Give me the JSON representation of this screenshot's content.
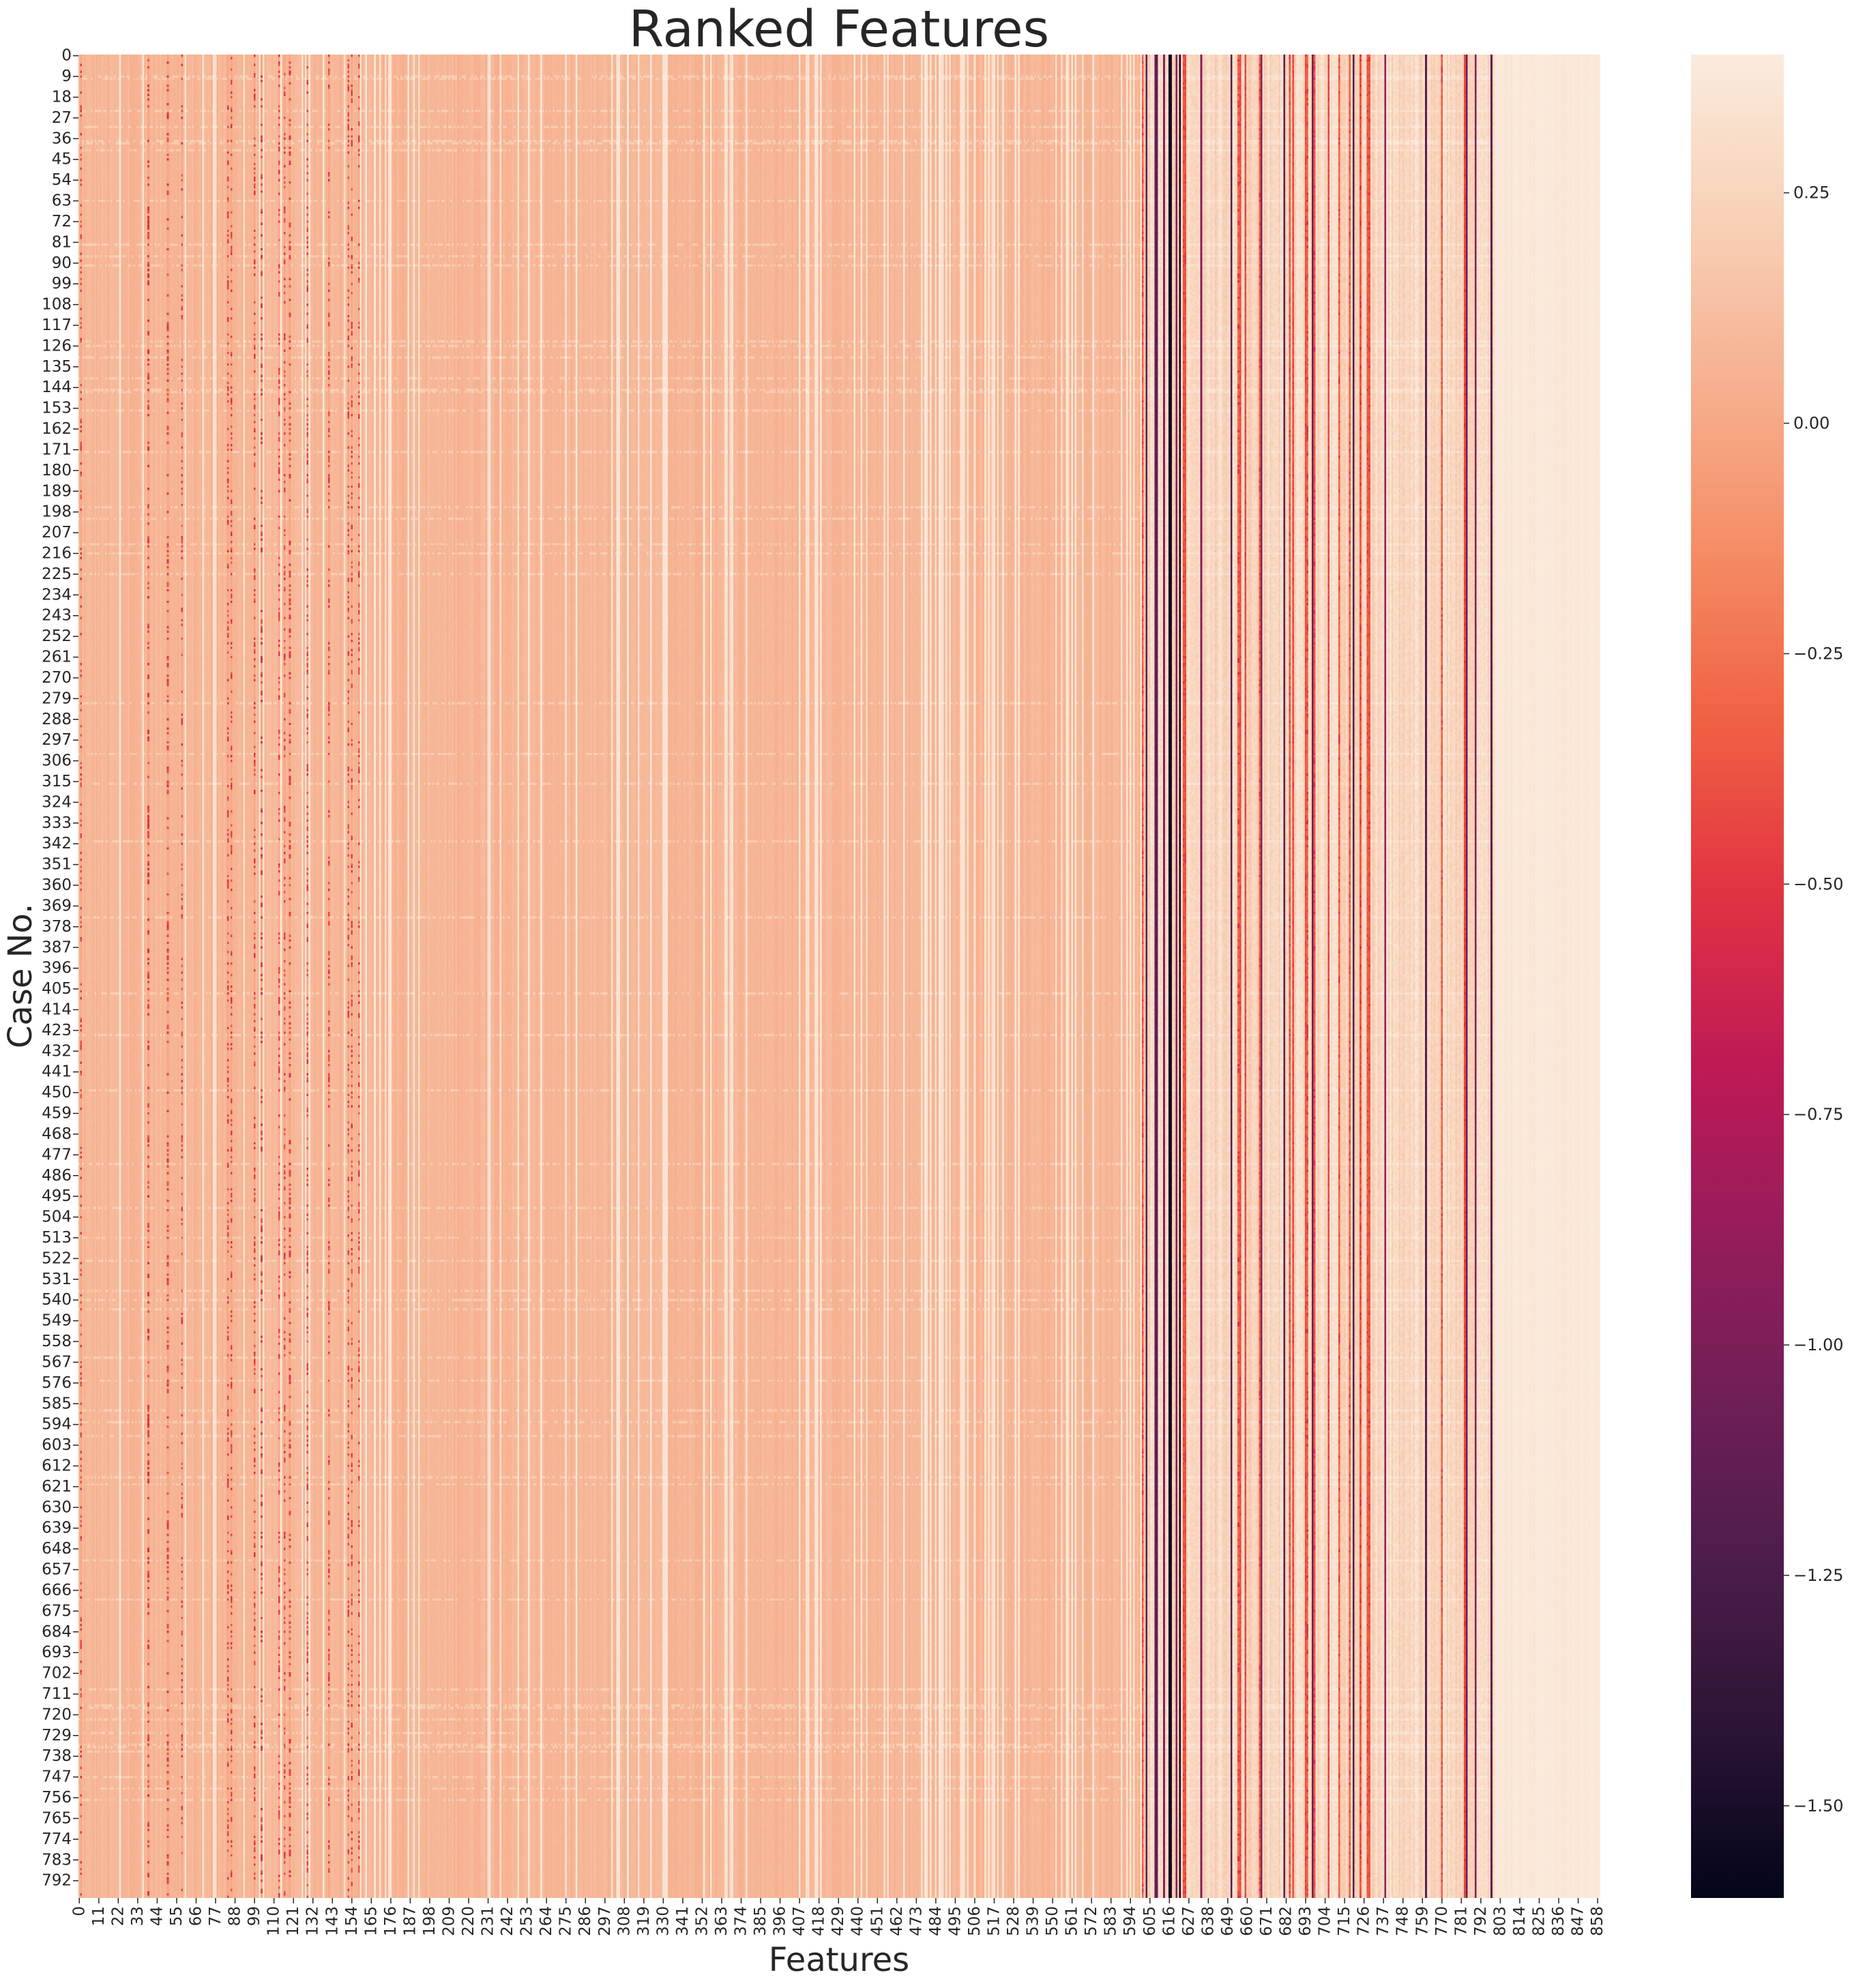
{
  "chart_data": {
    "type": "heatmap",
    "title": "Ranked Features",
    "xlabel": "Features",
    "ylabel": "Case No.",
    "n_features": 860,
    "n_cases": 800,
    "x_tick_labels": [
      "0",
      "11",
      "22",
      "33",
      "44",
      "55",
      "66",
      "77",
      "88",
      "99",
      "110",
      "121",
      "132",
      "143",
      "154",
      "165",
      "176",
      "187",
      "198",
      "209",
      "220",
      "231",
      "242",
      "253",
      "264",
      "275",
      "286",
      "297",
      "308",
      "319",
      "330",
      "341",
      "352",
      "363",
      "374",
      "385",
      "396",
      "407",
      "418",
      "429",
      "440",
      "451",
      "462",
      "473",
      "484",
      "495",
      "506",
      "517",
      "528",
      "539",
      "550",
      "561",
      "572",
      "583",
      "594",
      "605",
      "616",
      "627",
      "638",
      "649",
      "660",
      "671",
      "682",
      "693",
      "704",
      "715",
      "726",
      "737",
      "748",
      "759",
      "770",
      "781",
      "792",
      "803",
      "814",
      "825",
      "836",
      "847",
      "858"
    ],
    "y_tick_labels": [
      "0",
      "9",
      "18",
      "27",
      "36",
      "45",
      "54",
      "63",
      "72",
      "81",
      "90",
      "99",
      "108",
      "117",
      "126",
      "135",
      "144",
      "153",
      "162",
      "171",
      "180",
      "189",
      "198",
      "207",
      "216",
      "225",
      "234",
      "243",
      "252",
      "261",
      "270",
      "279",
      "288",
      "297",
      "306",
      "315",
      "324",
      "333",
      "342",
      "351",
      "360",
      "369",
      "378",
      "387",
      "396",
      "405",
      "414",
      "423",
      "432",
      "441",
      "450",
      "459",
      "468",
      "477",
      "486",
      "495",
      "504",
      "513",
      "522",
      "531",
      "540",
      "549",
      "558",
      "567",
      "576",
      "585",
      "594",
      "603",
      "612",
      "621",
      "630",
      "639",
      "648",
      "657",
      "666",
      "675",
      "684",
      "693",
      "702",
      "711",
      "720",
      "729",
      "738",
      "747",
      "756",
      "765",
      "774",
      "783",
      "792"
    ],
    "colorbar": {
      "vmin": -1.6,
      "vmax": 0.4,
      "ticks": [
        0.25,
        0.0,
        -0.25,
        -0.5,
        -0.75,
        -1.0,
        -1.25,
        -1.5
      ],
      "tick_labels": [
        "0.25",
        "0.00",
        "−0.25",
        "−0.50",
        "−0.75",
        "−1.00",
        "−1.25",
        "−1.50"
      ],
      "colormap": [
        "#03051a",
        "#2b1435",
        "#4c1d4b",
        "#701f57",
        "#971c5b",
        "#c01a55",
        "#e13342",
        "#f06043",
        "#f58b63",
        "#f6af8e",
        "#f8d0b6",
        "#faebdd"
      ]
    },
    "typical_value_ranges": [
      {
        "features": "0-185",
        "pattern": "mostly 0.0-0.1 with pale stripes near 0.3 and sparse red dashes down to -0.4"
      },
      {
        "features": "185-600",
        "pattern": "mostly 0.0-0.1 with pale stripes near 0.35"
      },
      {
        "features": "600-800",
        "pattern": "mixed 0.1-0.35 with dark magenta columns near -0.9 and near-black columns near -1.6 around features 612-626"
      },
      {
        "features": "800-860",
        "pattern": "near 0.35-0.4"
      }
    ]
  }
}
